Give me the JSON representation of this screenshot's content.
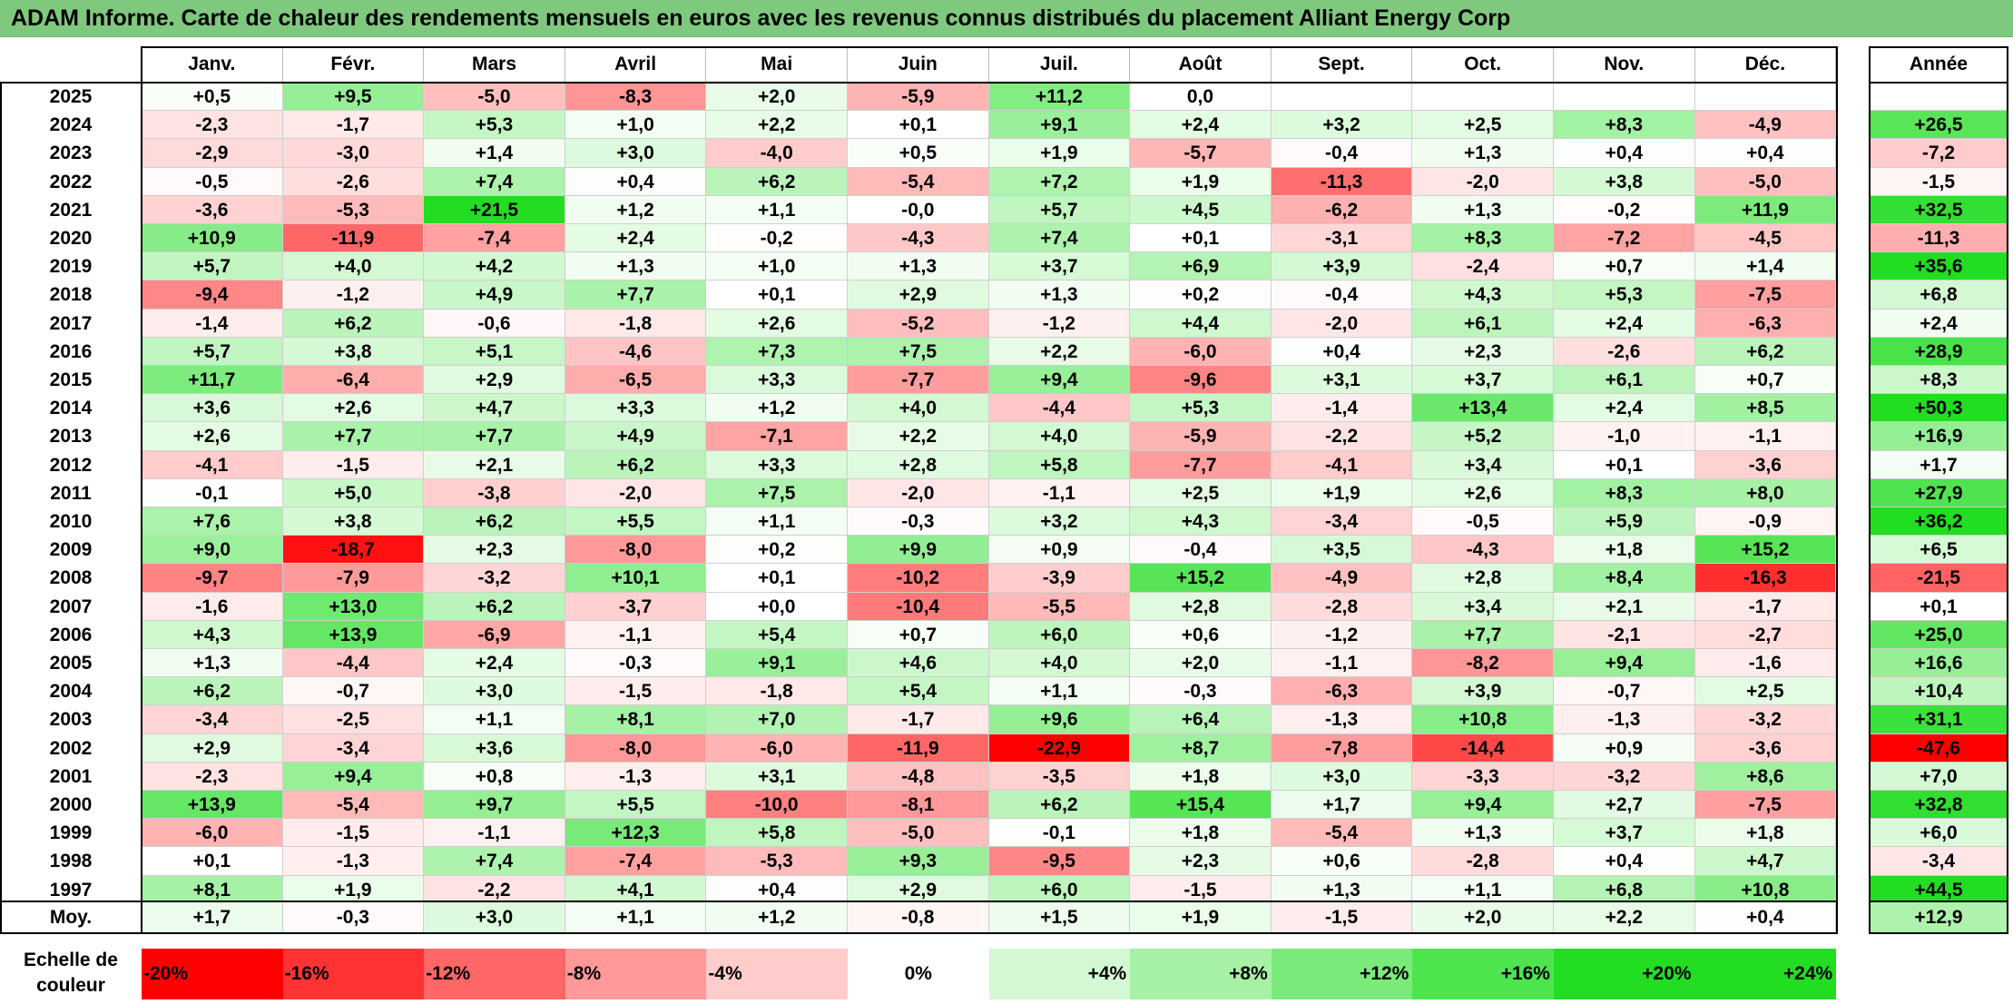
{
  "title": "ADAM Informe. Carte de chaleur des rendements mensuels en euros avec les revenus connus distribués du placement Alliant Energy Corp",
  "chart_data": {
    "type": "heatmap",
    "months": [
      "Janv.",
      "Févr.",
      "Mars",
      "Avril",
      "Mai",
      "Juin",
      "Juil.",
      "Août",
      "Sept.",
      "Oct.",
      "Nov.",
      "Déc."
    ],
    "year_header": "Année",
    "rows": [
      {
        "year": "2025",
        "values": [
          "+0,5",
          "+9,5",
          "-5,0",
          "-8,3",
          "+2,0",
          "-5,9",
          "+11,2",
          "0,0",
          "",
          "",
          "",
          ""
        ],
        "annual": ""
      },
      {
        "year": "2024",
        "values": [
          "-2,3",
          "-1,7",
          "+5,3",
          "+1,0",
          "+2,2",
          "+0,1",
          "+9,1",
          "+2,4",
          "+3,2",
          "+2,5",
          "+8,3",
          "-4,9"
        ],
        "annual": "+26,5"
      },
      {
        "year": "2023",
        "values": [
          "-2,9",
          "-3,0",
          "+1,4",
          "+3,0",
          "-4,0",
          "+0,5",
          "+1,9",
          "-5,7",
          "-0,4",
          "+1,3",
          "+0,4",
          "+0,4"
        ],
        "annual": "-7,2"
      },
      {
        "year": "2022",
        "values": [
          "-0,5",
          "-2,6",
          "+7,4",
          "+0,4",
          "+6,2",
          "-5,4",
          "+7,2",
          "+1,9",
          "-11,3",
          "-2,0",
          "+3,8",
          "-5,0"
        ],
        "annual": "-1,5"
      },
      {
        "year": "2021",
        "values": [
          "-3,6",
          "-5,3",
          "+21,5",
          "+1,2",
          "+1,1",
          "-0,0",
          "+5,7",
          "+4,5",
          "-6,2",
          "+1,3",
          "-0,2",
          "+11,9"
        ],
        "annual": "+32,5"
      },
      {
        "year": "2020",
        "values": [
          "+10,9",
          "-11,9",
          "-7,4",
          "+2,4",
          "-0,2",
          "-4,3",
          "+7,4",
          "+0,1",
          "-3,1",
          "+8,3",
          "-7,2",
          "-4,5"
        ],
        "annual": "-11,3"
      },
      {
        "year": "2019",
        "values": [
          "+5,7",
          "+4,0",
          "+4,2",
          "+1,3",
          "+1,0",
          "+1,3",
          "+3,7",
          "+6,9",
          "+3,9",
          "-2,4",
          "+0,7",
          "+1,4"
        ],
        "annual": "+35,6"
      },
      {
        "year": "2018",
        "values": [
          "-9,4",
          "-1,2",
          "+4,9",
          "+7,7",
          "+0,1",
          "+2,9",
          "+1,3",
          "+0,2",
          "-0,4",
          "+4,3",
          "+5,3",
          "-7,5"
        ],
        "annual": "+6,8"
      },
      {
        "year": "2017",
        "values": [
          "-1,4",
          "+6,2",
          "-0,6",
          "-1,8",
          "+2,6",
          "-5,2",
          "-1,2",
          "+4,4",
          "-2,0",
          "+6,1",
          "+2,4",
          "-6,3"
        ],
        "annual": "+2,4"
      },
      {
        "year": "2016",
        "values": [
          "+5,7",
          "+3,8",
          "+5,1",
          "-4,6",
          "+7,3",
          "+7,5",
          "+2,2",
          "-6,0",
          "+0,4",
          "+2,3",
          "-2,6",
          "+6,2"
        ],
        "annual": "+28,9"
      },
      {
        "year": "2015",
        "values": [
          "+11,7",
          "-6,4",
          "+2,9",
          "-6,5",
          "+3,3",
          "-7,7",
          "+9,4",
          "-9,6",
          "+3,1",
          "+3,7",
          "+6,1",
          "+0,7"
        ],
        "annual": "+8,3"
      },
      {
        "year": "2014",
        "values": [
          "+3,6",
          "+2,6",
          "+4,7",
          "+3,3",
          "+1,2",
          "+4,0",
          "-4,4",
          "+5,3",
          "-1,4",
          "+13,4",
          "+2,4",
          "+8,5"
        ],
        "annual": "+50,3"
      },
      {
        "year": "2013",
        "values": [
          "+2,6",
          "+7,7",
          "+7,7",
          "+4,9",
          "-7,1",
          "+2,2",
          "+4,0",
          "-5,9",
          "-2,2",
          "+5,2",
          "-1,0",
          "-1,1"
        ],
        "annual": "+16,9"
      },
      {
        "year": "2012",
        "values": [
          "-4,1",
          "-1,5",
          "+2,1",
          "+6,2",
          "+3,3",
          "+2,8",
          "+5,8",
          "-7,7",
          "-4,1",
          "+3,4",
          "+0,1",
          "-3,6"
        ],
        "annual": "+1,7"
      },
      {
        "year": "2011",
        "values": [
          "-0,1",
          "+5,0",
          "-3,8",
          "-2,0",
          "+7,5",
          "-2,0",
          "-1,1",
          "+2,5",
          "+1,9",
          "+2,6",
          "+8,3",
          "+8,0"
        ],
        "annual": "+27,9"
      },
      {
        "year": "2010",
        "values": [
          "+7,6",
          "+3,8",
          "+6,2",
          "+5,5",
          "+1,1",
          "-0,3",
          "+3,2",
          "+4,3",
          "-3,4",
          "-0,5",
          "+5,9",
          "-0,9"
        ],
        "annual": "+36,2"
      },
      {
        "year": "2009",
        "values": [
          "+9,0",
          "-18,7",
          "+2,3",
          "-8,0",
          "+0,2",
          "+9,9",
          "+0,9",
          "-0,4",
          "+3,5",
          "-4,3",
          "+1,8",
          "+15,2"
        ],
        "annual": "+6,5"
      },
      {
        "year": "2008",
        "values": [
          "-9,7",
          "-7,9",
          "-3,2",
          "+10,1",
          "+0,1",
          "-10,2",
          "-3,9",
          "+15,2",
          "-4,9",
          "+2,8",
          "+8,4",
          "-16,3"
        ],
        "annual": "-21,5"
      },
      {
        "year": "2007",
        "values": [
          "-1,6",
          "+13,0",
          "+6,2",
          "-3,7",
          "+0,0",
          "-10,4",
          "-5,5",
          "+2,8",
          "-2,8",
          "+3,4",
          "+2,1",
          "-1,7"
        ],
        "annual": "+0,1"
      },
      {
        "year": "2006",
        "values": [
          "+4,3",
          "+13,9",
          "-6,9",
          "-1,1",
          "+5,4",
          "+0,7",
          "+6,0",
          "+0,6",
          "-1,2",
          "+7,7",
          "-2,1",
          "-2,7"
        ],
        "annual": "+25,0"
      },
      {
        "year": "2005",
        "values": [
          "+1,3",
          "-4,4",
          "+2,4",
          "-0,3",
          "+9,1",
          "+4,6",
          "+4,0",
          "+2,0",
          "-1,1",
          "-8,2",
          "+9,4",
          "-1,6"
        ],
        "annual": "+16,6"
      },
      {
        "year": "2004",
        "values": [
          "+6,2",
          "-0,7",
          "+3,0",
          "-1,5",
          "-1,8",
          "+5,4",
          "+1,1",
          "-0,3",
          "-6,3",
          "+3,9",
          "-0,7",
          "+2,5"
        ],
        "annual": "+10,4"
      },
      {
        "year": "2003",
        "values": [
          "-3,4",
          "-2,5",
          "+1,1",
          "+8,1",
          "+7,0",
          "-1,7",
          "+9,6",
          "+6,4",
          "-1,3",
          "+10,8",
          "-1,3",
          "-3,2"
        ],
        "annual": "+31,1"
      },
      {
        "year": "2002",
        "values": [
          "+2,9",
          "-3,4",
          "+3,6",
          "-8,0",
          "-6,0",
          "-11,9",
          "-22,9",
          "+8,7",
          "-7,8",
          "-14,4",
          "+0,9",
          "-3,6"
        ],
        "annual": "-47,6"
      },
      {
        "year": "2001",
        "values": [
          "-2,3",
          "+9,4",
          "+0,8",
          "-1,3",
          "+3,1",
          "-4,8",
          "-3,5",
          "+1,8",
          "+3,0",
          "-3,3",
          "-3,2",
          "+8,6"
        ],
        "annual": "+7,0"
      },
      {
        "year": "2000",
        "values": [
          "+13,9",
          "-5,4",
          "+9,7",
          "+5,5",
          "-10,0",
          "-8,1",
          "+6,2",
          "+15,4",
          "+1,7",
          "+9,4",
          "+2,7",
          "-7,5"
        ],
        "annual": "+32,8"
      },
      {
        "year": "1999",
        "values": [
          "-6,0",
          "-1,5",
          "-1,1",
          "+12,3",
          "+5,8",
          "-5,0",
          "-0,1",
          "+1,8",
          "-5,4",
          "+1,3",
          "+3,7",
          "+1,8"
        ],
        "annual": "+6,0"
      },
      {
        "year": "1998",
        "values": [
          "+0,1",
          "-1,3",
          "+7,4",
          "-7,4",
          "-5,3",
          "+9,3",
          "-9,5",
          "+2,3",
          "+0,6",
          "-2,8",
          "+0,4",
          "+4,7"
        ],
        "annual": "-3,4"
      },
      {
        "year": "1997",
        "values": [
          "+8,1",
          "+1,9",
          "-2,2",
          "+4,1",
          "+0,4",
          "+2,9",
          "+6,0",
          "-1,5",
          "+1,3",
          "+1,1",
          "+6,8",
          "+10,8"
        ],
        "annual": "+44,5"
      }
    ],
    "average": {
      "label": "Moy.",
      "values": [
        "+1,7",
        "-0,3",
        "+3,0",
        "+1,1",
        "+1,2",
        "-0,8",
        "+1,5",
        "+1,9",
        "-1,5",
        "+2,0",
        "+2,2",
        "+0,4"
      ],
      "annual": "+12,9"
    },
    "scale": {
      "label_line1": "Echelle de",
      "label_line2": "couleur",
      "items": [
        "-20%",
        "-16%",
        "-12%",
        "-8%",
        "-4%",
        "0%",
        "+4%",
        "+8%",
        "+12%",
        "+16%",
        "+20%",
        "+24%"
      ]
    },
    "colors": {
      "negative_max": "#ff0000",
      "neutral": "#ffffff",
      "positive_max": "#22dd22",
      "title_bg": "#7fc97f"
    }
  }
}
